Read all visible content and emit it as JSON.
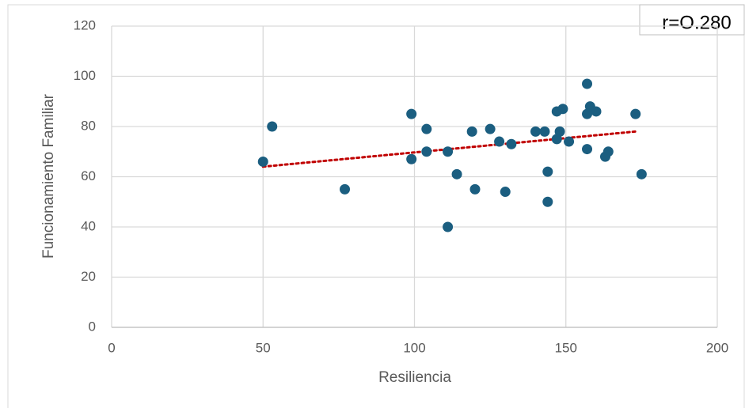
{
  "chart_data": {
    "type": "scatter",
    "x_label": "Resiliencia",
    "y_label": "Funcionamiento Familiar",
    "annotation": "r=O.280",
    "color": "#1b5e80",
    "x": [
      50,
      53,
      77,
      99,
      99,
      104,
      104,
      111,
      111,
      114,
      119,
      120,
      125,
      128,
      130,
      132,
      140,
      143,
      144,
      144,
      147,
      147,
      148,
      149,
      151,
      157,
      157,
      157,
      158,
      160,
      163,
      164,
      173,
      175
    ],
    "values": [
      66,
      80,
      55,
      85,
      67,
      79,
      70,
      70,
      40,
      61,
      78,
      55,
      79,
      74,
      54,
      73,
      78,
      78,
      62,
      50,
      86,
      75,
      78,
      87,
      74,
      97,
      85,
      71,
      88,
      86,
      68,
      70,
      85,
      61
    ],
    "trendline": {
      "x": [
        50,
        173
      ],
      "y": [
        64,
        78
      ],
      "color": "#c00000"
    },
    "xlim": [
      0,
      200
    ],
    "xticks": [
      0,
      50,
      100,
      150,
      200
    ],
    "ylim": [
      0,
      120
    ],
    "yticks": [
      0,
      20,
      40,
      60,
      80,
      100,
      120
    ],
    "grid": true
  }
}
